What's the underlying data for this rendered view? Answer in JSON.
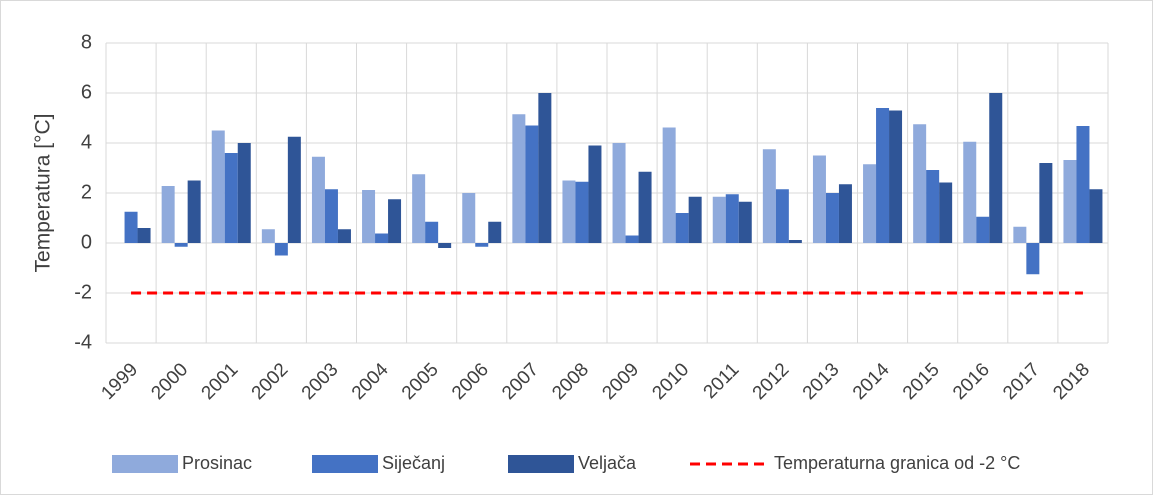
{
  "chart_data": {
    "type": "bar",
    "y_axis_label": "Temperatura [°C]",
    "categories": [
      "1999",
      "2000",
      "2001",
      "2002",
      "2003",
      "2004",
      "2005",
      "2006",
      "2007",
      "2008",
      "2009",
      "2010",
      "2011",
      "2012",
      "2013",
      "2014",
      "2015",
      "2016",
      "2017",
      "2018"
    ],
    "series": [
      {
        "name": "Prosinac",
        "color": "#8faadc",
        "values": [
          0,
          2.28,
          4.5,
          0.55,
          3.45,
          2.12,
          2.75,
          2.0,
          5.15,
          2.5,
          4.0,
          4.62,
          1.85,
          3.75,
          3.5,
          3.15,
          4.75,
          4.05,
          0.65,
          3.32
        ]
      },
      {
        "name": "Siječanj",
        "color": "#4472c4",
        "values": [
          1.25,
          -0.15,
          3.6,
          -0.5,
          2.15,
          0.38,
          0.85,
          -0.15,
          4.7,
          2.45,
          0.3,
          1.2,
          1.95,
          2.15,
          2.0,
          5.4,
          2.92,
          1.05,
          -1.25,
          4.68
        ]
      },
      {
        "name": "Veljača",
        "color": "#2f5597",
        "values": [
          0.6,
          2.5,
          4.0,
          4.25,
          0.55,
          1.75,
          -0.2,
          0.85,
          6.0,
          3.9,
          2.85,
          1.85,
          1.65,
          0.12,
          2.35,
          5.3,
          2.42,
          6.0,
          3.2,
          2.15
        ]
      },
      {
        "name": "Temperaturna granica od -2 °C",
        "color": "#ff0000",
        "line_style": "dashed",
        "values": [
          -2,
          -2,
          -2,
          -2,
          -2,
          -2,
          -2,
          -2,
          -2,
          -2,
          -2,
          -2,
          -2,
          -2,
          -2,
          -2,
          -2,
          -2,
          -2,
          -2
        ]
      }
    ],
    "ylim": [
      -4,
      8
    ],
    "yticks": [
      -4,
      -2,
      0,
      2,
      4,
      6,
      8
    ],
    "grid": true,
    "legend": "bottom"
  }
}
